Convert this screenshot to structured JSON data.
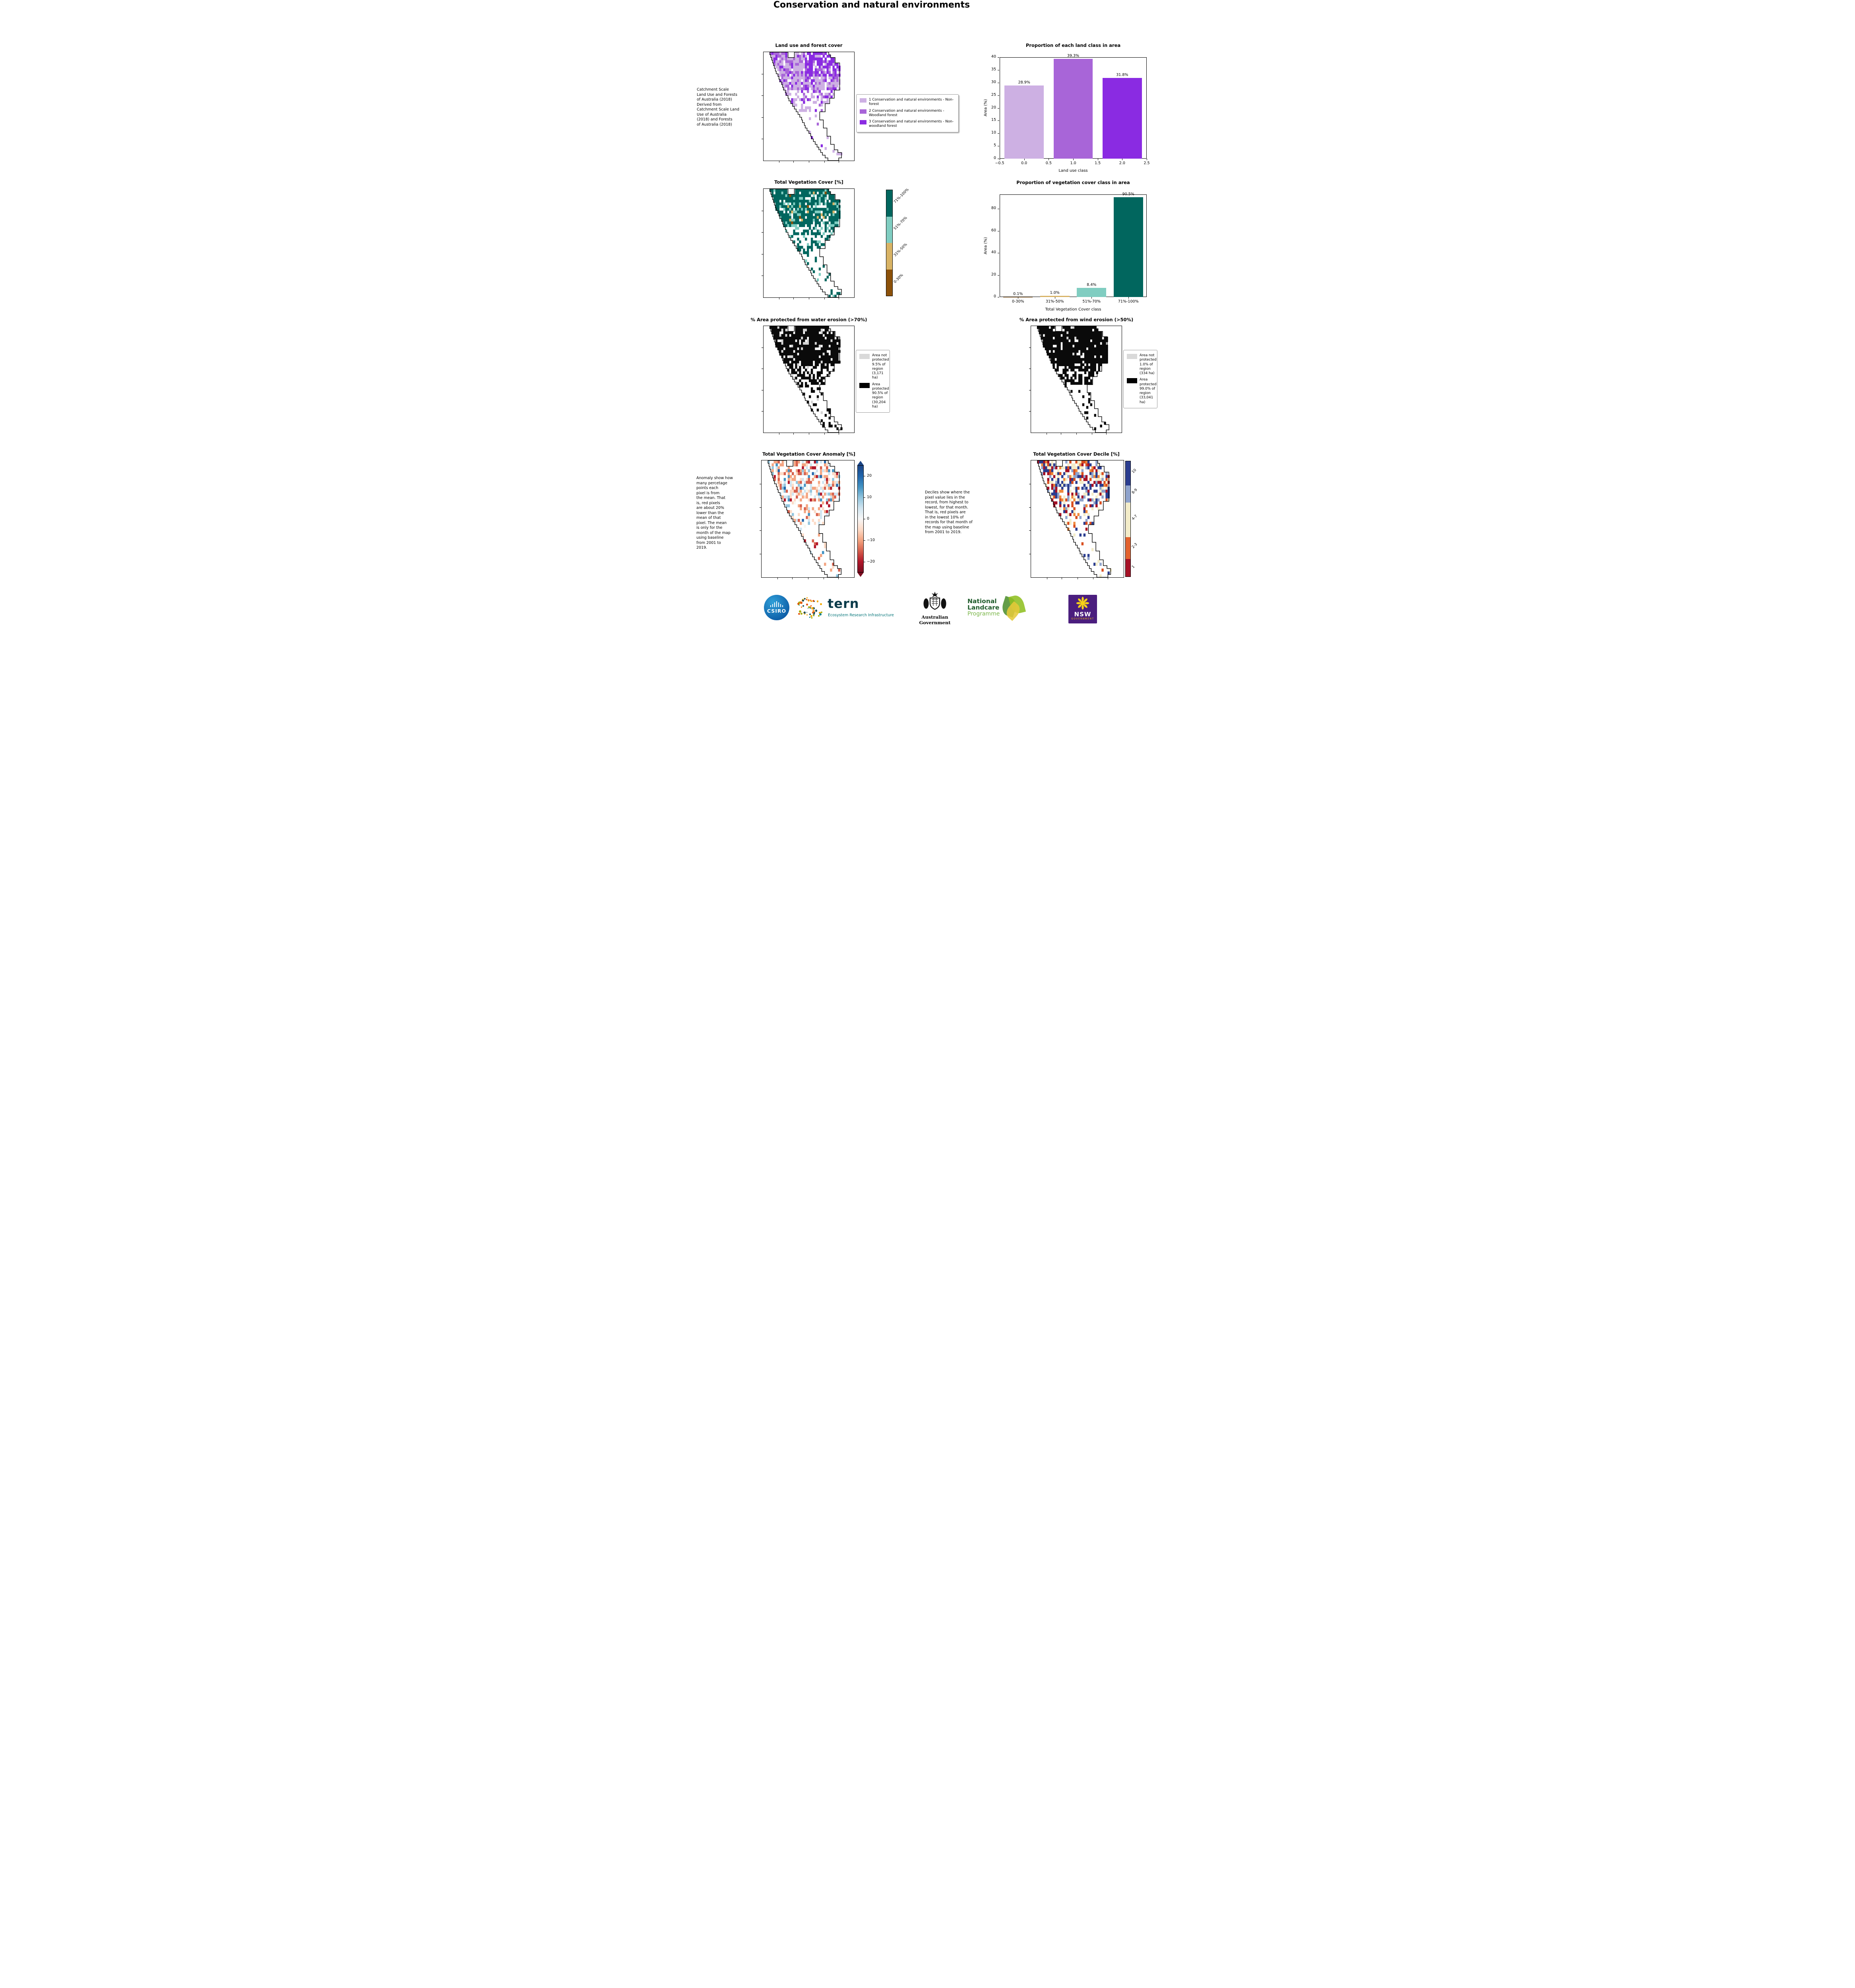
{
  "page_title": "Conservation and natural environments",
  "land_use_panel": {
    "title": "Land use and forest cover",
    "caption": " Catchment Scale\nLand Use and Forests\nof Australia (2018)\nDerived from\nCatchment Scale Land\nUse of Australia\n(2018) and Forests\nof Australia (2018)",
    "legend": [
      {
        "color": "#cdb0e3",
        "label": "1 Conservation and natural environments - Non-forest"
      },
      {
        "color": "#a865d8",
        "label": "2 Conservation and natural environments - Woodland forest"
      },
      {
        "color": "#8a2be2",
        "label": "3 Conservation and natural environments - Non-woodland forest"
      }
    ]
  },
  "veg_cover_panel": {
    "title": "Total Vegetation Cover [%]",
    "colorbar": [
      {
        "color": "#01665e",
        "label": "71%-100%",
        "h": 1
      },
      {
        "color": "#80cdc1",
        "label": "51%-70%",
        "h": 1
      },
      {
        "color": "#d8b365",
        "label": "31%-50%",
        "h": 1
      },
      {
        "color": "#8c510a",
        "label": "0-30%",
        "h": 1
      }
    ]
  },
  "water_erosion_panel": {
    "title": "% Area protected from water erosion (>70%)",
    "legend": [
      {
        "color": "#d9d9d9",
        "label": "Area not protected 9.5% of region (3,171 ha)"
      },
      {
        "color": "#000000",
        "label": "Area protected 90.5% of region (30,204 ha)"
      }
    ]
  },
  "wind_erosion_panel": {
    "title": "% Area protected from wind erosion (>50%)",
    "legend": [
      {
        "color": "#d9d9d9",
        "label": "Area not protected 1.0% of region (334 ha)"
      },
      {
        "color": "#000000",
        "label": "Area protected 99.0% of region (33,041 ha)"
      }
    ]
  },
  "anomaly_panel": {
    "title": "Total Vegetation Cover Anomaly [%]",
    "note": "Anomaly show how\nmany percetage\npoints each\npixel is from\nthe mean. That\nis, red pixels\nare about 20%\nlower than the\nmean of that\npixel. The mean\nis only for the\nmonth of the map\nusing baseline\nfrom 2001 to\n2019.",
    "colorbar_ticks": [
      {
        "label": "20",
        "pos": 10
      },
      {
        "label": "10",
        "pos": 30
      },
      {
        "label": "0",
        "pos": 50
      },
      {
        "label": "−10",
        "pos": 70
      },
      {
        "label": "−20",
        "pos": 90
      }
    ],
    "colorbar_stops": [
      "#1b4586",
      "#2166ac",
      "#4393c3",
      "#92c5de",
      "#d1e5f0",
      "#f7f7f7",
      "#fddbc7",
      "#f4a582",
      "#d6604d",
      "#b2182b",
      "#7a0c20"
    ]
  },
  "decile_panel": {
    "title": "Total Vegetation Cover Decile [%]",
    "note": "Deciles show where the\npixel value lies in the\nrecord, from highest to\nlowest, for that month.\nThat is, red pixels are\nin the lowest 10% of\nrecords for that month of\nthe map using baseline\nfrom 2001 to 2019.",
    "colorbar": [
      {
        "color": "#2b3d8f",
        "label": "10",
        "h": 21
      },
      {
        "color": "#8fa3cc",
        "label": "8-9",
        "h": 15
      },
      {
        "color": "#f3ecc9",
        "label": "4-7",
        "h": 30
      },
      {
        "color": "#e2622e",
        "label": "2-3",
        "h": 19
      },
      {
        "color": "#a51126",
        "label": "1",
        "h": 15
      }
    ]
  },
  "chart_data": [
    {
      "type": "bar",
      "title": "Proportion of each land class in area",
      "xlabel": "Land use class",
      "ylabel": "Area (%)",
      "categories": [
        "0",
        "1",
        "2"
      ],
      "values": [
        28.9,
        39.3,
        31.8
      ],
      "bar_labels": [
        "28.9%",
        "39.3%",
        "31.8%"
      ],
      "colors": [
        "#cdb0e3",
        "#a865d8",
        "#8a2be2"
      ],
      "ylim": [
        0,
        40
      ],
      "yticks": [
        0,
        5,
        10,
        15,
        20,
        25,
        30,
        35,
        40
      ],
      "xticks": [
        "−0.5",
        "0.0",
        "0.5",
        "1.0",
        "1.5",
        "2.0",
        "2.5"
      ],
      "xtick_mode": "edge",
      "grid": false,
      "legend_position": "none"
    },
    {
      "type": "bar",
      "title": "Proportion of vegetation cover class in area",
      "xlabel": "Total Vegetation Cover class",
      "ylabel": "Area (%)",
      "categories": [
        "0-30%",
        "31%-50%",
        "51%-70%",
        "71%-100%"
      ],
      "values": [
        0.1,
        1.0,
        8.4,
        90.5
      ],
      "bar_labels": [
        "0.1%",
        "1.0%",
        "8.4%",
        "90.5%"
      ],
      "colors": [
        "#8c510a",
        "#d8b365",
        "#80cdc1",
        "#01665e"
      ],
      "ylim": [
        0,
        93
      ],
      "yticks": [
        0,
        20,
        40,
        60,
        80
      ],
      "xtick_mode": "center",
      "grid": false,
      "legend_position": "none"
    }
  ],
  "map_shape": {
    "rows": [
      [
        7,
        72
      ],
      [
        8,
        74
      ],
      [
        9,
        79
      ],
      [
        10,
        79
      ],
      [
        11,
        84
      ],
      [
        12,
        84
      ],
      [
        13,
        84
      ],
      [
        14,
        84
      ],
      [
        16,
        84
      ],
      [
        17,
        84
      ],
      [
        18,
        84
      ],
      [
        20,
        84
      ],
      [
        21,
        84
      ],
      [
        22,
        84
      ],
      [
        24,
        78
      ],
      [
        25,
        78
      ],
      [
        27,
        78
      ],
      [
        28,
        73
      ],
      [
        30,
        73
      ],
      [
        32,
        68
      ],
      [
        34,
        68
      ],
      [
        36,
        68
      ],
      [
        38,
        62
      ],
      [
        40,
        62
      ],
      [
        42,
        62
      ],
      [
        43,
        66
      ],
      [
        45,
        66
      ],
      [
        46,
        66
      ],
      [
        48,
        70
      ],
      [
        50,
        70
      ],
      [
        52,
        70
      ],
      [
        53,
        74
      ],
      [
        55,
        74
      ],
      [
        57,
        74
      ],
      [
        59,
        78
      ],
      [
        61,
        78
      ],
      [
        63,
        82
      ],
      [
        65,
        86
      ],
      [
        68,
        86
      ],
      [
        71,
        83
      ]
    ],
    "notch": {
      "rows": 2,
      "from": 27,
      "to": 34
    }
  },
  "maps": {
    "landuse": {
      "seed": 11,
      "bias": "tr-dark",
      "palette": [
        [
          "#cdb0e3",
          0.36
        ],
        [
          "#a865d8",
          0.34
        ],
        [
          "#8a2be2",
          0.3
        ]
      ],
      "zones": [
        {
          "rows": 14,
          "d": 0.84
        },
        {
          "rows": 8,
          "d": 0.45
        },
        {
          "rows": 18,
          "d": 0.1
        }
      ]
    },
    "vegcover": {
      "seed": 22,
      "palette": [
        [
          "#01665e",
          0.8
        ],
        [
          "#80cdc1",
          0.15
        ],
        [
          "#d8b365",
          0.04
        ],
        [
          "#8c510a",
          0.01
        ]
      ],
      "zones": [
        {
          "rows": 14,
          "d": 0.84
        },
        {
          "rows": 8,
          "d": 0.45
        },
        {
          "rows": 18,
          "d": 0.16
        }
      ]
    },
    "water": {
      "seed": 33,
      "palette": [
        [
          "#0a0a0a",
          0.94
        ],
        [
          "#d4d4d4",
          0.06
        ]
      ],
      "zones": [
        {
          "rows": 14,
          "d": 0.9
        },
        {
          "rows": 8,
          "d": 0.55
        },
        {
          "rows": 18,
          "d": 0.2
        }
      ]
    },
    "wind": {
      "seed": 44,
      "palette": [
        [
          "#0a0a0a",
          0.99
        ],
        [
          "#d4d4d4",
          0.01
        ]
      ],
      "zones": [
        {
          "rows": 14,
          "d": 0.94
        },
        {
          "rows": 8,
          "d": 0.65
        },
        {
          "rows": 18,
          "d": 0.14
        }
      ]
    },
    "anomaly": {
      "seed": 55,
      "palette": [
        [
          "#b2182b",
          0.06
        ],
        [
          "#d6604d",
          0.14
        ],
        [
          "#f4a582",
          0.22
        ],
        [
          "#fddbc7",
          0.18
        ],
        [
          "#f7f7f0",
          0.1
        ],
        [
          "#d1e5f0",
          0.14
        ],
        [
          "#92c5de",
          0.09
        ],
        [
          "#4393c3",
          0.04
        ],
        [
          "#2166ac",
          0.03
        ]
      ],
      "zones": [
        {
          "rows": 14,
          "d": 0.55
        },
        {
          "rows": 8,
          "d": 0.3
        },
        {
          "rows": 18,
          "d": 0.1
        }
      ]
    },
    "decile": {
      "seed": 66,
      "palette": [
        [
          "#a51126",
          0.14
        ],
        [
          "#d94e1f",
          0.12
        ],
        [
          "#f08a3c",
          0.08
        ],
        [
          "#f3ecc9",
          0.18
        ],
        [
          "#8fa3cc",
          0.16
        ],
        [
          "#2b3d8f",
          0.32
        ]
      ],
      "zones": [
        {
          "rows": 14,
          "d": 0.62
        },
        {
          "rows": 8,
          "d": 0.38
        },
        {
          "rows": 18,
          "d": 0.12
        }
      ]
    }
  },
  "footer": {
    "csiro": "CSIRO",
    "tern": "tern",
    "tern_sub": "Ecosystem Research Infrastructure",
    "ausgov": "Australian Government",
    "landcare_1": "National",
    "landcare_2": "Landcare",
    "landcare_3": "Programme",
    "nsw": "NSW",
    "nsw_sub": "GOVERNMENT"
  }
}
